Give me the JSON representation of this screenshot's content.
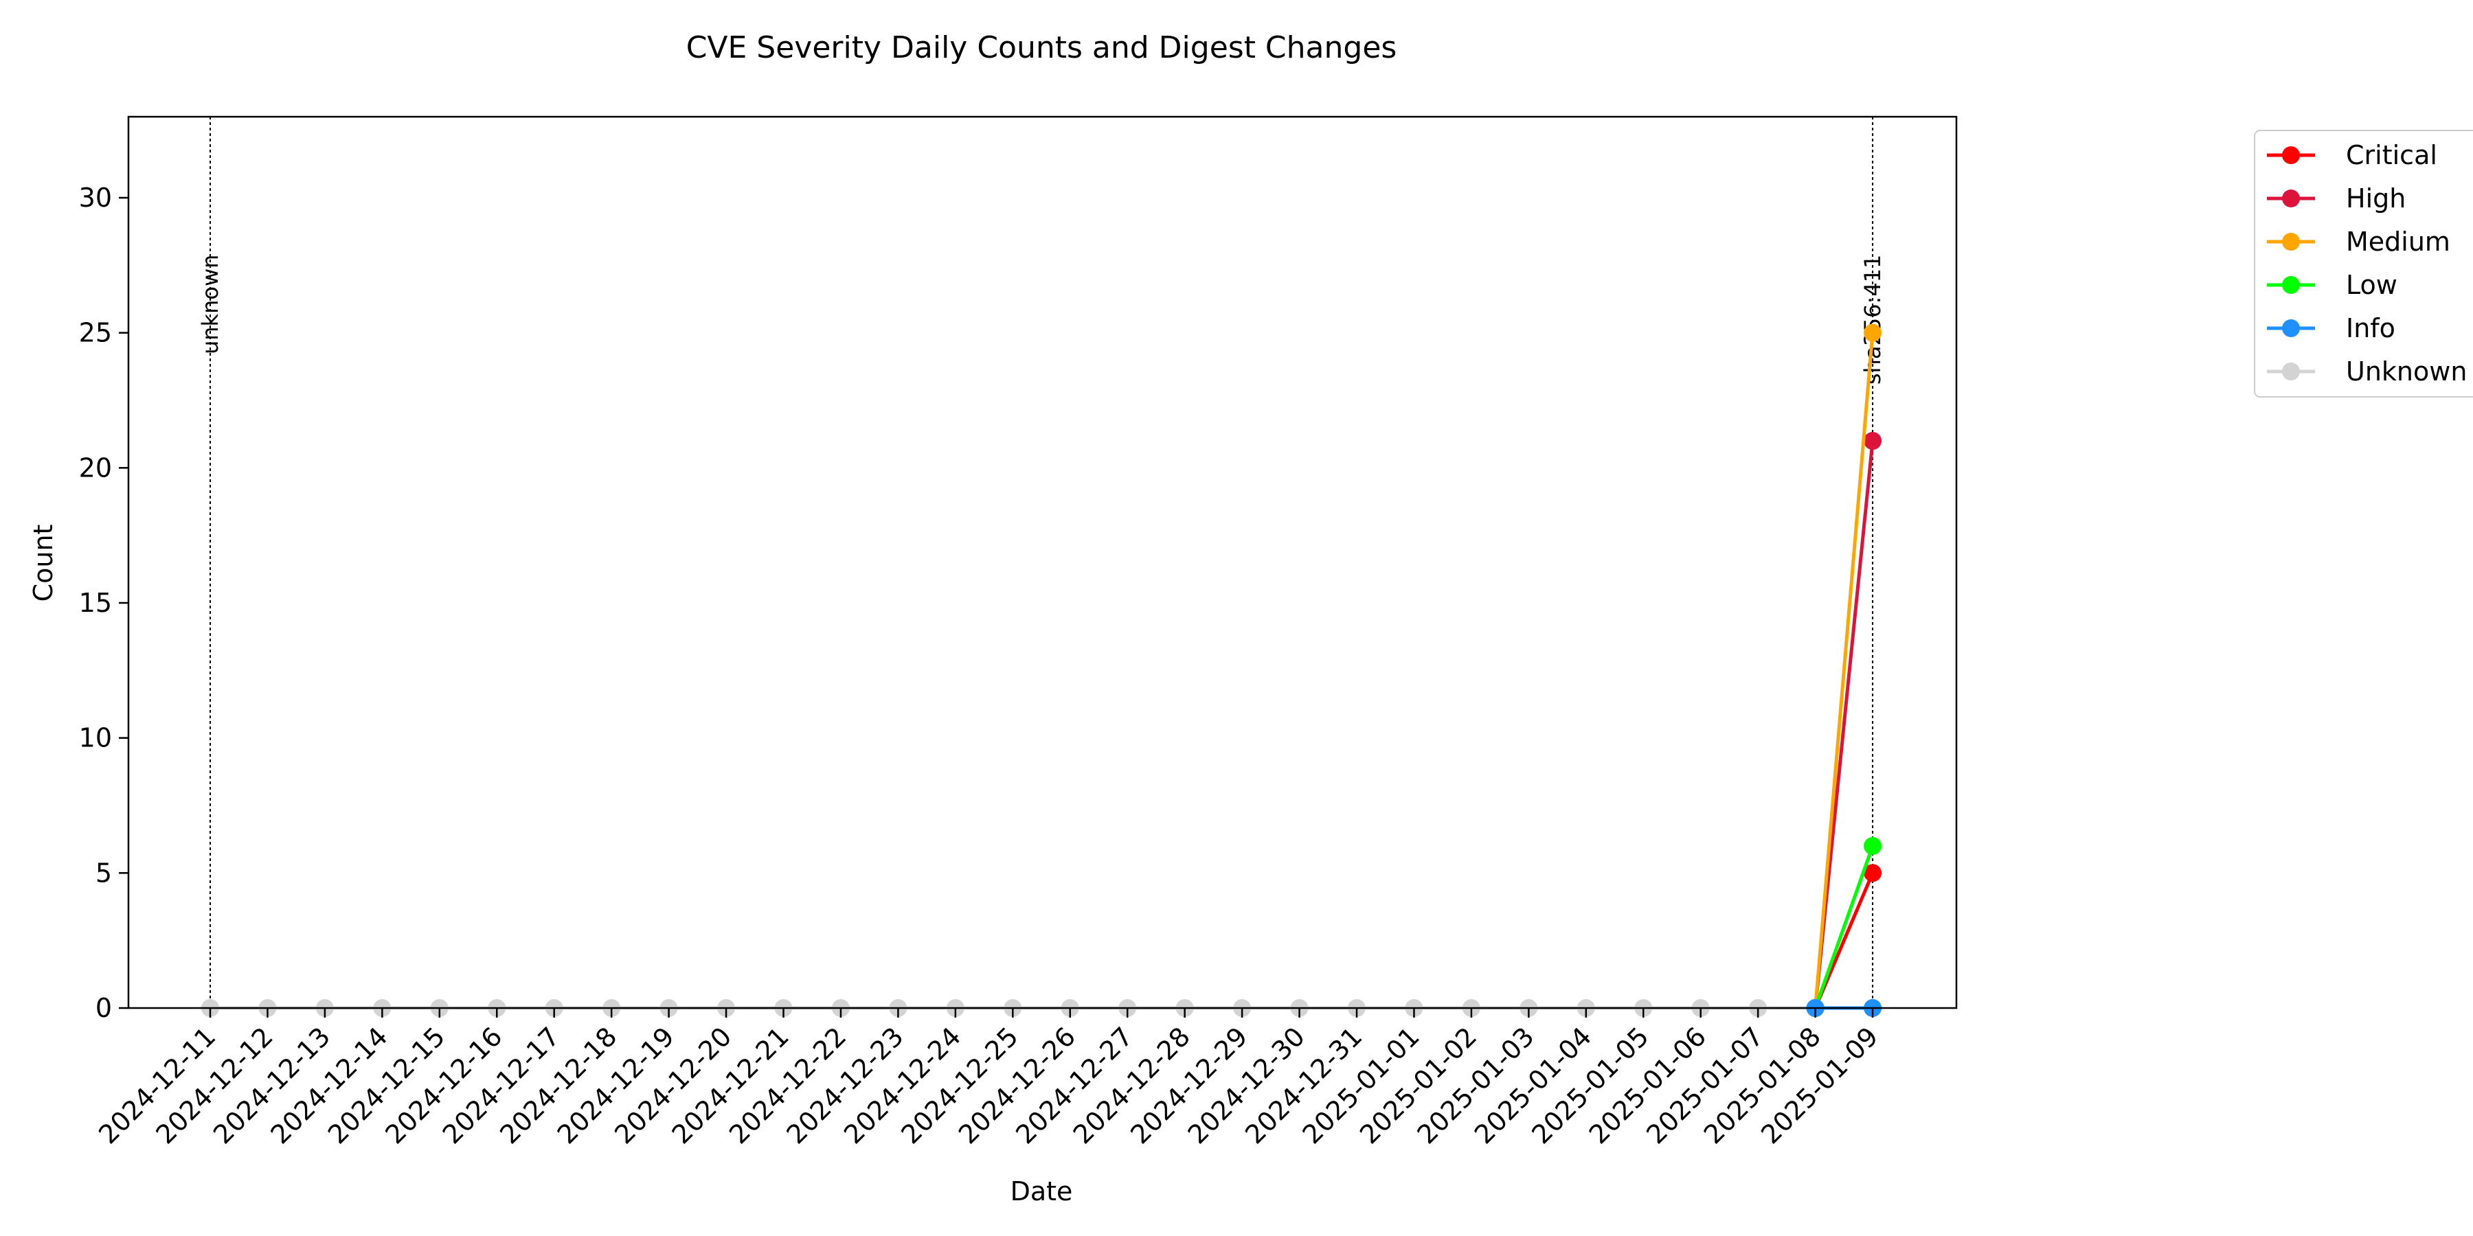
{
  "chart_data": {
    "type": "line",
    "title": "CVE Severity Daily Counts and Digest Changes",
    "xlabel": "Date",
    "ylabel": "Count",
    "ylim": [
      0,
      33
    ],
    "yticks": [
      0,
      5,
      10,
      15,
      20,
      25,
      30
    ],
    "grid": false,
    "legend_position": "outside-top-right",
    "x": [
      "2024-12-11",
      "2024-12-12",
      "2024-12-13",
      "2024-12-14",
      "2024-12-15",
      "2024-12-16",
      "2024-12-17",
      "2024-12-18",
      "2024-12-19",
      "2024-12-20",
      "2024-12-21",
      "2024-12-22",
      "2024-12-23",
      "2024-12-24",
      "2024-12-25",
      "2024-12-26",
      "2024-12-27",
      "2024-12-28",
      "2024-12-29",
      "2024-12-30",
      "2024-12-31",
      "2025-01-01",
      "2025-01-02",
      "2025-01-03",
      "2025-01-04",
      "2025-01-05",
      "2025-01-06",
      "2025-01-07",
      "2025-01-08",
      "2025-01-09"
    ],
    "series": [
      {
        "name": "Critical",
        "color": "#ff0000",
        "values": [
          null,
          null,
          null,
          null,
          null,
          null,
          null,
          null,
          null,
          null,
          null,
          null,
          null,
          null,
          null,
          null,
          null,
          null,
          null,
          null,
          null,
          null,
          null,
          null,
          null,
          null,
          null,
          null,
          0,
          5
        ]
      },
      {
        "name": "High",
        "color": "#dc143c",
        "values": [
          null,
          null,
          null,
          null,
          null,
          null,
          null,
          null,
          null,
          null,
          null,
          null,
          null,
          null,
          null,
          null,
          null,
          null,
          null,
          null,
          null,
          null,
          null,
          null,
          null,
          null,
          null,
          null,
          0,
          21
        ]
      },
      {
        "name": "Medium",
        "color": "#ffa500",
        "values": [
          null,
          null,
          null,
          null,
          null,
          null,
          null,
          null,
          null,
          null,
          null,
          null,
          null,
          null,
          null,
          null,
          null,
          null,
          null,
          null,
          null,
          null,
          null,
          null,
          null,
          null,
          null,
          null,
          0,
          25
        ]
      },
      {
        "name": "Low",
        "color": "#00ff00",
        "values": [
          null,
          null,
          null,
          null,
          null,
          null,
          null,
          null,
          null,
          null,
          null,
          null,
          null,
          null,
          null,
          null,
          null,
          null,
          null,
          null,
          null,
          null,
          null,
          null,
          null,
          null,
          null,
          null,
          0,
          6
        ]
      },
      {
        "name": "Info",
        "color": "#1e90ff",
        "values": [
          null,
          null,
          null,
          null,
          null,
          null,
          null,
          null,
          null,
          null,
          null,
          null,
          null,
          null,
          null,
          null,
          null,
          null,
          null,
          null,
          null,
          null,
          null,
          null,
          null,
          null,
          null,
          null,
          0,
          0
        ]
      },
      {
        "name": "Unknown",
        "color": "#d3d3d3",
        "values": [
          0,
          0,
          0,
          0,
          0,
          0,
          0,
          0,
          0,
          0,
          0,
          0,
          0,
          0,
          0,
          0,
          0,
          0,
          0,
          0,
          0,
          0,
          0,
          0,
          0,
          0,
          0,
          0,
          0,
          0
        ]
      }
    ],
    "annotations": [
      {
        "x": "2024-12-11",
        "label": "unknown"
      },
      {
        "x": "2025-01-09",
        "label": "sha256:411"
      }
    ]
  }
}
